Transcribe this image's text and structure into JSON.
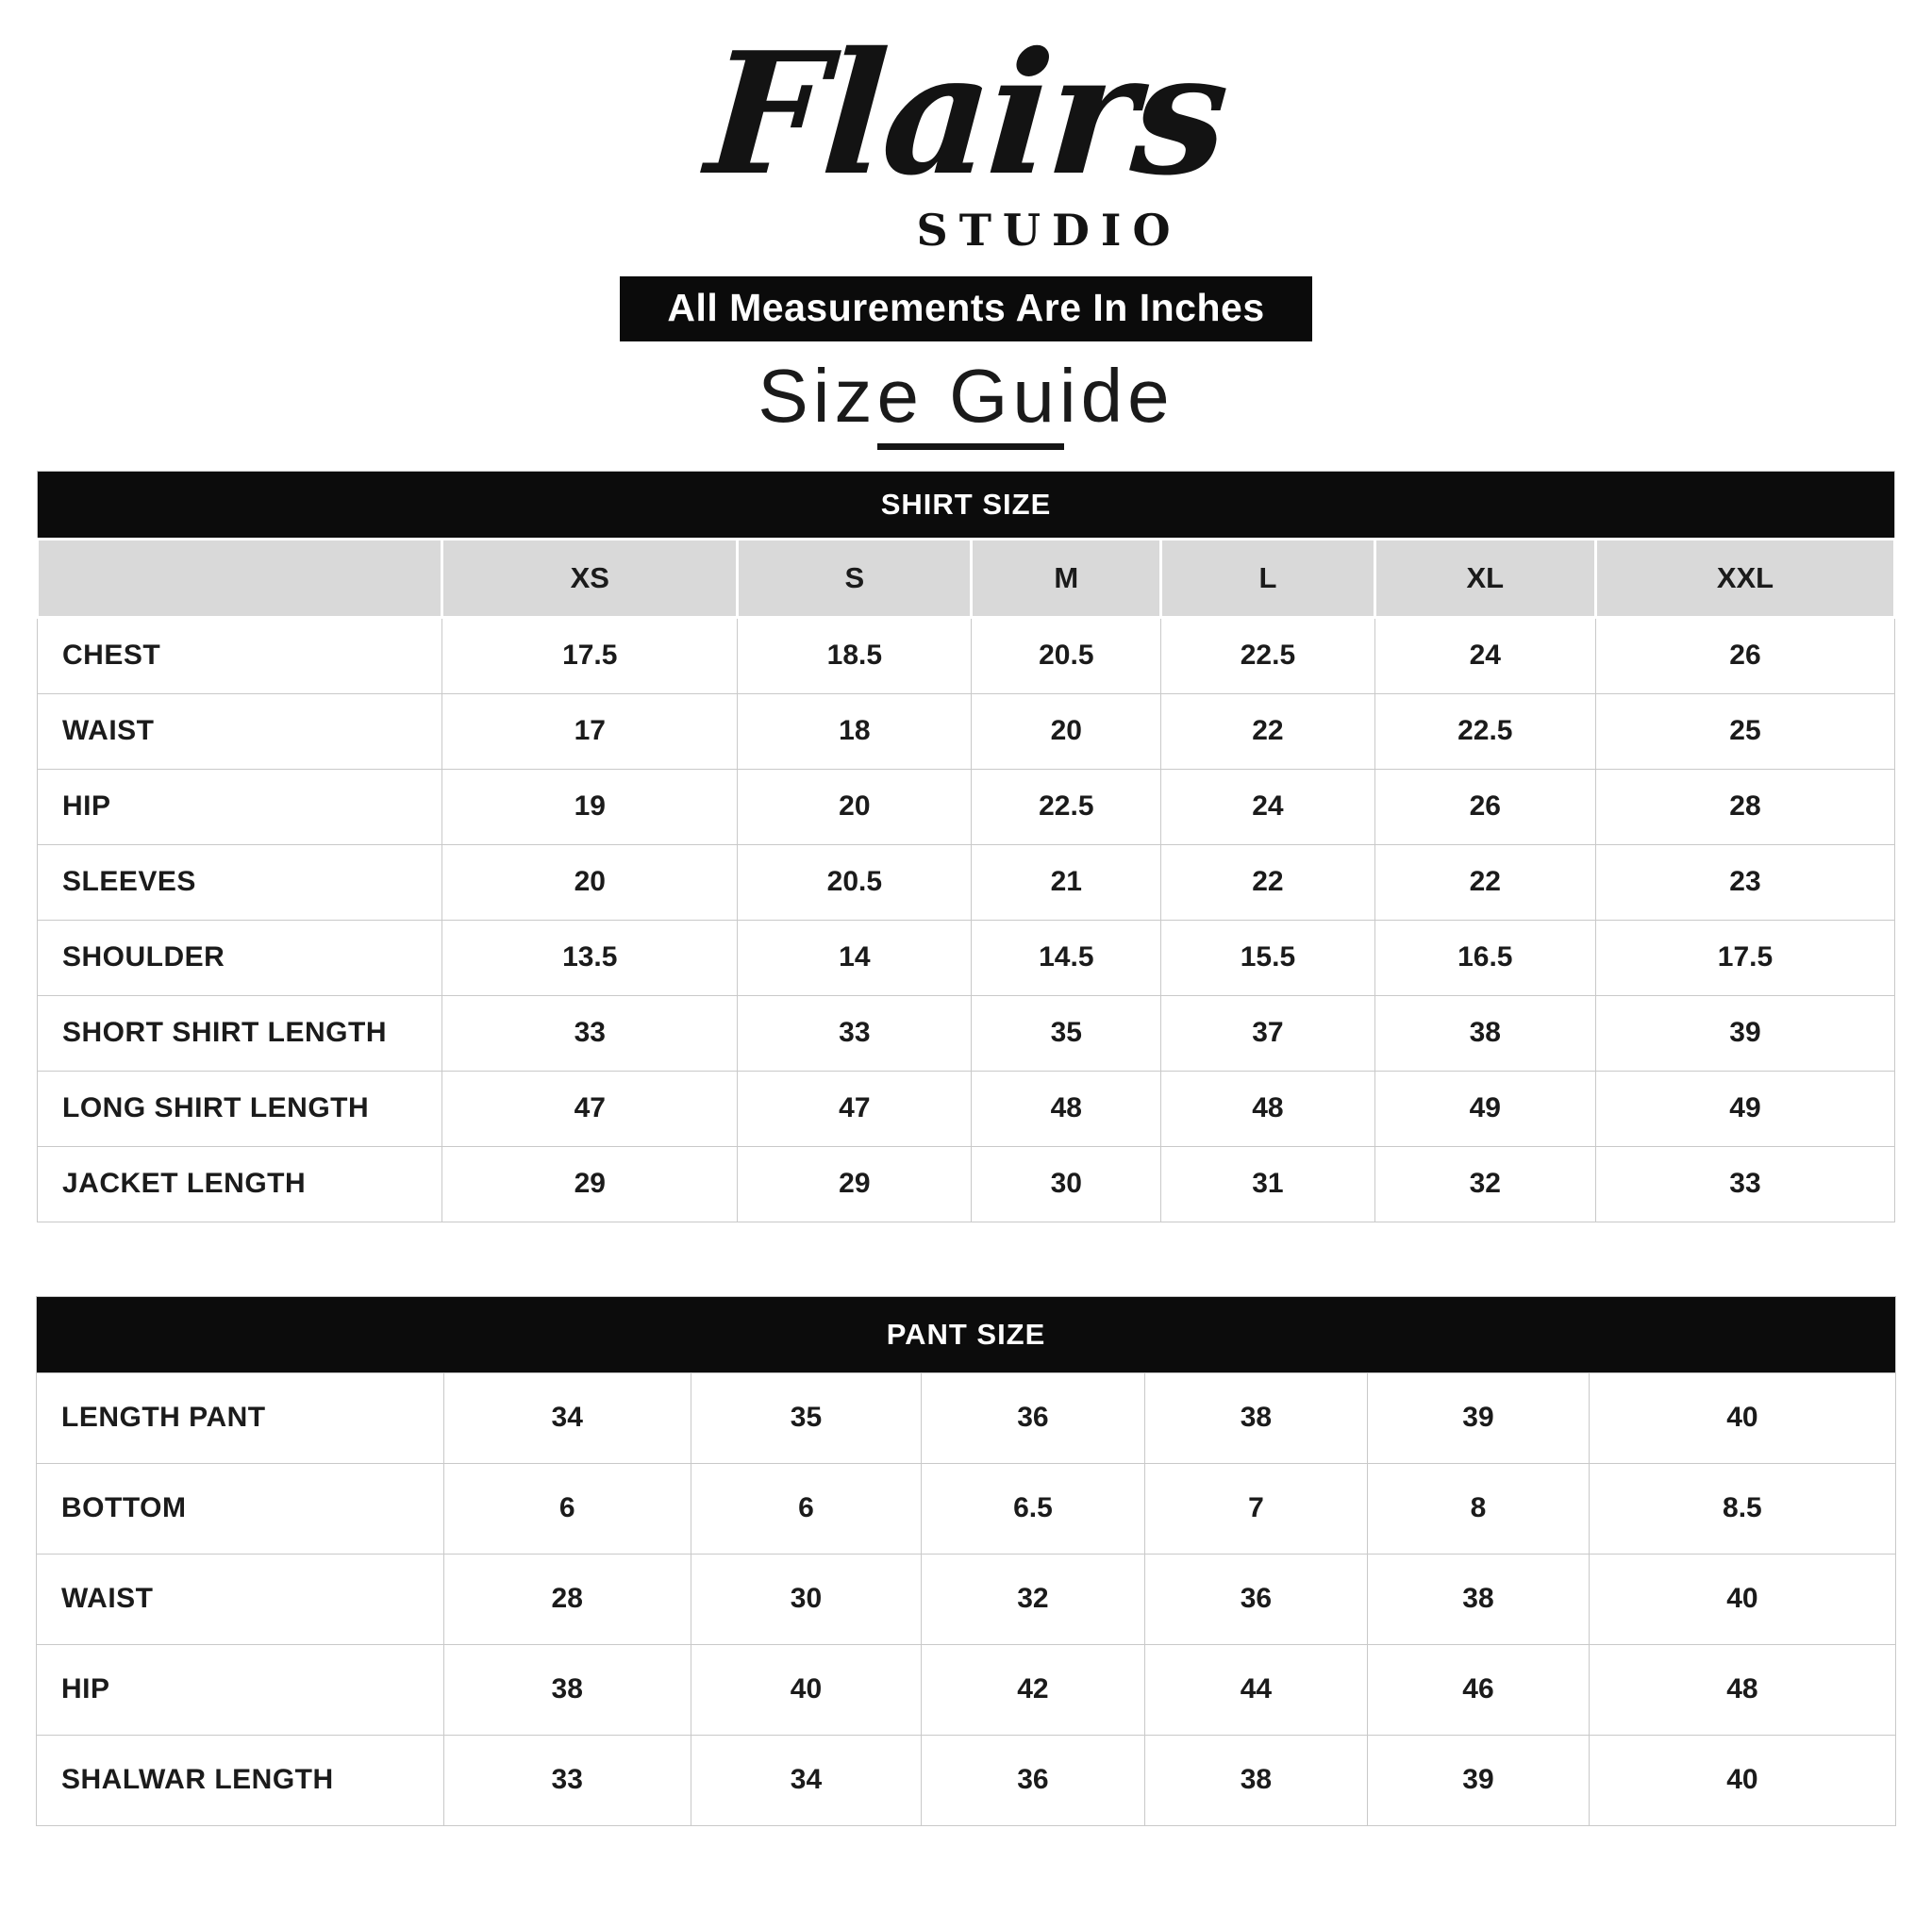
{
  "brand": {
    "name": "Flairs",
    "subtitle": "STUDIO"
  },
  "banner": {
    "text": "All Measurements Are In Inches"
  },
  "title": {
    "text": "Size Guide"
  },
  "colors": {
    "black_bar": "#0c0c0c",
    "header_grey": "#d9d9d9",
    "border_grey": "#c9c9c9",
    "text": "#1b1b1b"
  },
  "shirt_table": {
    "header": "SHIRT SIZE",
    "columns": [
      "",
      "XS",
      "S",
      "M",
      "L",
      "XL",
      "XXL"
    ],
    "rows": [
      {
        "label": "CHEST",
        "values": [
          "17.5",
          "18.5",
          "20.5",
          "22.5",
          "24",
          "26"
        ]
      },
      {
        "label": "WAIST",
        "values": [
          "17",
          "18",
          "20",
          "22",
          "22.5",
          "25"
        ]
      },
      {
        "label": "HIP",
        "values": [
          "19",
          "20",
          "22.5",
          "24",
          "26",
          "28"
        ]
      },
      {
        "label": "SLEEVES",
        "values": [
          "20",
          "20.5",
          "21",
          "22",
          "22",
          "23"
        ]
      },
      {
        "label": "SHOULDER",
        "values": [
          "13.5",
          "14",
          "14.5",
          "15.5",
          "16.5",
          "17.5"
        ]
      },
      {
        "label": "SHORT SHIRT LENGTH",
        "values": [
          "33",
          "33",
          "35",
          "37",
          "38",
          "39"
        ]
      },
      {
        "label": "LONG SHIRT LENGTH",
        "values": [
          "47",
          "47",
          "48",
          "48",
          "49",
          "49"
        ]
      },
      {
        "label": "JACKET LENGTH",
        "values": [
          "29",
          "29",
          "30",
          "31",
          "32",
          "33"
        ]
      }
    ]
  },
  "pant_table": {
    "header": "PANT SIZE",
    "rows": [
      {
        "label": "LENGTH PANT",
        "values": [
          "34",
          "35",
          "36",
          "38",
          "39",
          "40"
        ]
      },
      {
        "label": "BOTTOM",
        "values": [
          "6",
          "6",
          "6.5",
          "7",
          "8",
          "8.5"
        ]
      },
      {
        "label": "WAIST",
        "values": [
          "28",
          "30",
          "32",
          "36",
          "38",
          "40"
        ]
      },
      {
        "label": "HIP",
        "values": [
          "38",
          "40",
          "42",
          "44",
          "46",
          "48"
        ]
      },
      {
        "label": "SHALWAR LENGTH",
        "values": [
          "33",
          "34",
          "36",
          "38",
          "39",
          "40"
        ]
      }
    ]
  }
}
